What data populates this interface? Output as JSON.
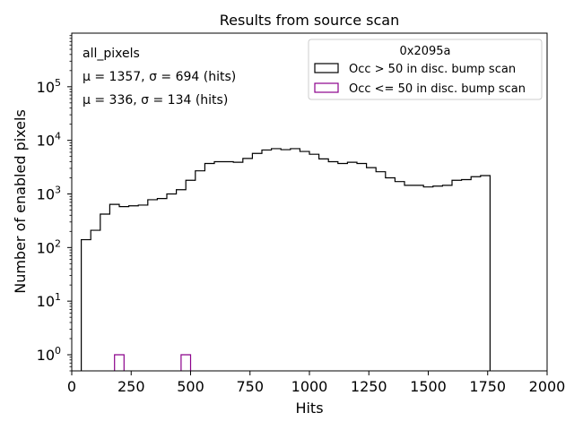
{
  "chart_data": {
    "type": "histogram",
    "title": "Results from source scan",
    "xlabel": "Hits",
    "ylabel": "Number of enabled pixels",
    "xlim": [
      0,
      2000
    ],
    "ylim": [
      0.5,
      1000000
    ],
    "yscale": "log",
    "bin_width": 40,
    "x_ticks": [
      0,
      250,
      500,
      750,
      1000,
      1250,
      1500,
      1750,
      2000
    ],
    "y_ticks": [
      {
        "value": 1,
        "base": "10",
        "exp": "0"
      },
      {
        "value": 10,
        "base": "10",
        "exp": "1"
      },
      {
        "value": 100,
        "base": "10",
        "exp": "2"
      },
      {
        "value": 1000,
        "base": "10",
        "exp": "3"
      },
      {
        "value": 10000,
        "base": "10",
        "exp": "4"
      },
      {
        "value": 100000,
        "base": "10",
        "exp": "5"
      }
    ],
    "legend": {
      "title": "0x2095a",
      "placement": "top-right"
    },
    "annotations": {
      "label": "all_pixels",
      "stats": [
        {
          "series": 0,
          "text": "μ = 1357, σ = 694 (hits)"
        },
        {
          "series": 1,
          "text": "μ = 336, σ = 134 (hits)"
        }
      ]
    },
    "series": [
      {
        "name": "Occ > 50 in disc. bump scan",
        "color": "#000000",
        "bins": [
          {
            "x0": 40,
            "v": 140
          },
          {
            "x0": 80,
            "v": 210
          },
          {
            "x0": 120,
            "v": 420
          },
          {
            "x0": 160,
            "v": 640
          },
          {
            "x0": 200,
            "v": 580
          },
          {
            "x0": 240,
            "v": 600
          },
          {
            "x0": 280,
            "v": 620
          },
          {
            "x0": 320,
            "v": 780
          },
          {
            "x0": 360,
            "v": 820
          },
          {
            "x0": 400,
            "v": 1000
          },
          {
            "x0": 440,
            "v": 1200
          },
          {
            "x0": 480,
            "v": 1800
          },
          {
            "x0": 520,
            "v": 2700
          },
          {
            "x0": 560,
            "v": 3700
          },
          {
            "x0": 600,
            "v": 4000
          },
          {
            "x0": 640,
            "v": 4000
          },
          {
            "x0": 680,
            "v": 3900
          },
          {
            "x0": 720,
            "v": 4600
          },
          {
            "x0": 760,
            "v": 5700
          },
          {
            "x0": 800,
            "v": 6600
          },
          {
            "x0": 840,
            "v": 7000
          },
          {
            "x0": 880,
            "v": 6700
          },
          {
            "x0": 920,
            "v": 7000
          },
          {
            "x0": 960,
            "v": 6200
          },
          {
            "x0": 1000,
            "v": 5500
          },
          {
            "x0": 1040,
            "v": 4500
          },
          {
            "x0": 1080,
            "v": 4000
          },
          {
            "x0": 1120,
            "v": 3700
          },
          {
            "x0": 1160,
            "v": 3900
          },
          {
            "x0": 1200,
            "v": 3700
          },
          {
            "x0": 1240,
            "v": 3100
          },
          {
            "x0": 1280,
            "v": 2600
          },
          {
            "x0": 1320,
            "v": 2000
          },
          {
            "x0": 1360,
            "v": 1700
          },
          {
            "x0": 1400,
            "v": 1450
          },
          {
            "x0": 1440,
            "v": 1450
          },
          {
            "x0": 1480,
            "v": 1350
          },
          {
            "x0": 1520,
            "v": 1400
          },
          {
            "x0": 1560,
            "v": 1450
          },
          {
            "x0": 1600,
            "v": 1800
          },
          {
            "x0": 1640,
            "v": 1850
          },
          {
            "x0": 1680,
            "v": 2100
          },
          {
            "x0": 1720,
            "v": 2200
          }
        ]
      },
      {
        "name": "Occ <= 50 in disc. bump scan",
        "color": "#8b008b",
        "bins": [
          {
            "x0": 180,
            "v": 1
          },
          {
            "x0": 460,
            "v": 1
          }
        ]
      }
    ]
  }
}
